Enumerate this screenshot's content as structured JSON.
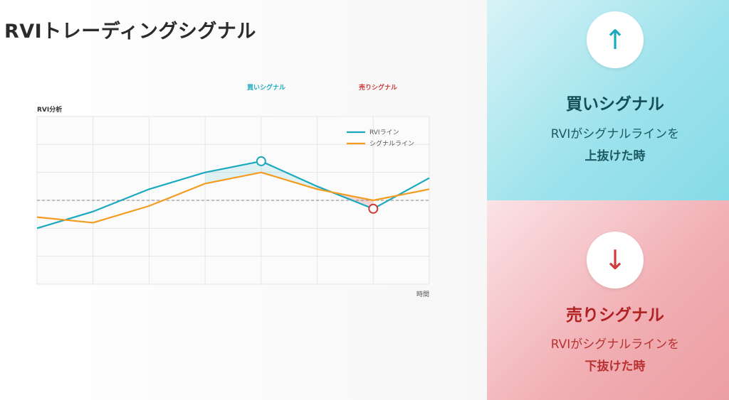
{
  "page_title": "RVIトレーディングシグナル",
  "chart_top_labels": {
    "buy": "買いシグナル",
    "sell": "売りシグナル"
  },
  "colors": {
    "rvi": "#1aa9bf",
    "signal": "#f39c1f",
    "buy": "#1aa9bf",
    "sell": "#cf3a3a",
    "grid": "#e6e6e6",
    "reference": "#999999"
  },
  "chart_data": {
    "type": "line",
    "title": "RVI分析",
    "xlabel": "時間",
    "ylabel": "",
    "x": [
      0,
      1,
      2,
      3,
      4,
      5,
      6,
      7
    ],
    "xlim": [
      0,
      7
    ],
    "ylim": [
      0,
      6
    ],
    "reference_line": 3,
    "grid": true,
    "legend_position": "top-right",
    "series": [
      {
        "name": "RVIライン",
        "values": [
          2.0,
          2.6,
          3.4,
          4.0,
          4.4,
          3.5,
          2.7,
          3.8
        ]
      },
      {
        "name": "シグナルライン",
        "values": [
          2.4,
          2.2,
          2.8,
          3.6,
          4.0,
          3.4,
          3.0,
          3.4
        ]
      }
    ],
    "markers": [
      {
        "x": 4,
        "series": 0,
        "type": "buy"
      },
      {
        "x": 6,
        "series": 0,
        "type": "sell"
      }
    ]
  },
  "panels": {
    "buy": {
      "arrow": "↑",
      "title": "買いシグナル",
      "line1": "RVIがシグナルラインを",
      "line2": "上抜けた時"
    },
    "sell": {
      "arrow": "↓",
      "title": "売りシグナル",
      "line1": "RVIがシグナルラインを",
      "line2": "下抜けた時"
    }
  }
}
